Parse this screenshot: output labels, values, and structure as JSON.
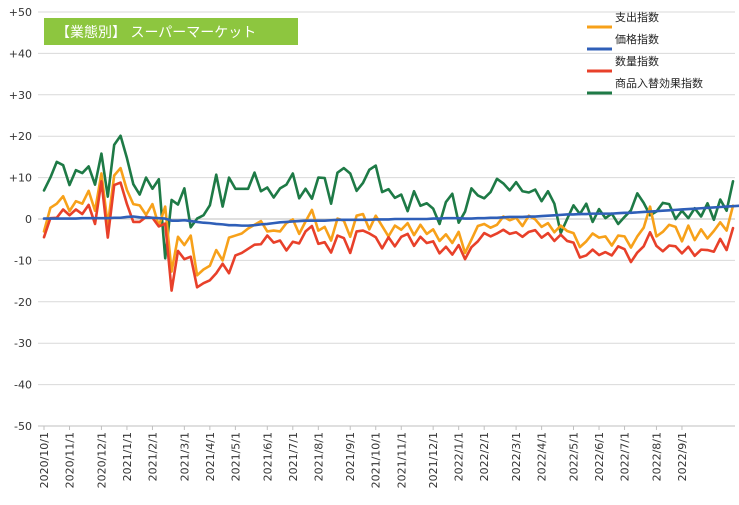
{
  "chart_data": {
    "type": "line",
    "title": "【業態別】 スーパーマーケット",
    "title_bg_color": "#8DC63F",
    "ylim": [
      -50,
      50
    ],
    "y_ticks": [
      "+50",
      "+40",
      "+30",
      "+20",
      "+10",
      "0",
      "-10",
      "-20",
      "-30",
      "-40",
      "-50"
    ],
    "y_tick_values": [
      50,
      40,
      30,
      20,
      10,
      0,
      -10,
      -20,
      -30,
      -40,
      -50
    ],
    "x_tick_labels": [
      "2020/10/1",
      "2020/11/1",
      "2020/12/1",
      "2021/1/1",
      "2021/2/1",
      "2021/3/1",
      "2021/4/1",
      "2021/5/1",
      "2021/6/1",
      "2021/7/1",
      "2021/8/1",
      "2021/9/1",
      "2021/10/1",
      "2021/11/1",
      "2021/12/1",
      "2022/1/1",
      "2022/2/1",
      "2022/3/1",
      "2022/4/1",
      "2022/5/1",
      "2022/6/1",
      "2022/7/1",
      "2022/8/1",
      "2022/9/1"
    ],
    "x_tick_index": [
      0,
      4,
      9,
      13,
      17,
      22,
      26,
      30,
      35,
      39,
      43,
      48,
      52,
      56,
      61,
      65,
      69,
      74,
      78,
      83,
      87,
      91,
      96,
      100
    ],
    "legend_position": "top-right",
    "grid": true,
    "series": [
      {
        "name": "支出指数",
        "color": "#F7A11A",
        "values": [
          -3,
          2.7,
          3.7,
          5.5,
          1.9,
          4.3,
          3.7,
          6.8,
          2,
          11,
          -1.5,
          10.5,
          12.3,
          7,
          3.6,
          3.3,
          1,
          3.6,
          -1.7,
          3,
          -12.7,
          -4.3,
          -6.3,
          -4,
          -13.6,
          -12.2,
          -11.3,
          -7.5,
          -10,
          -4.5,
          -4,
          -3.5,
          -2.3,
          -1.4,
          -0.5,
          -3,
          -2.8,
          -3,
          -1,
          -0.1,
          -3.6,
          -0.6,
          2.2,
          -2.8,
          -1.9,
          -5.2,
          0.1,
          -0.4,
          -4.3,
          0.8,
          1.2,
          -2.5,
          0.8,
          -1.7,
          -4.2,
          -1.6,
          -2.6,
          -1,
          -3.9,
          -1.4,
          -3.6,
          -2.5,
          -5.3,
          -3.7,
          -5.8,
          -3.1,
          -8.2,
          -5,
          -1.7,
          -1.2,
          -2.1,
          -1.4,
          0.6,
          -0.3,
          0.3,
          -1.7,
          0.8,
          -0.1,
          -1.9,
          -1,
          -3.2,
          -1.6,
          -2.9,
          -3.4,
          -6.8,
          -5.4,
          -3.5,
          -4.5,
          -4.2,
          -6.4,
          -4,
          -4.2,
          -6.9,
          -4.2,
          -2.1,
          3,
          -4.2,
          -3.1,
          -1.4,
          -1.9,
          -5.4,
          -1.6,
          -5.1,
          -2.5,
          -4.7,
          -2.9,
          -0.8,
          -2.8,
          3.2
        ]
      },
      {
        "name": "価格指数",
        "color": "#2F5FB8",
        "values": [
          0.1,
          0.1,
          0.1,
          0.1,
          0.1,
          0.1,
          0.2,
          0.2,
          0.2,
          0.2,
          0.2,
          0.3,
          0.3,
          0.5,
          0.6,
          0.4,
          0.3,
          0.3,
          0.2,
          0.1,
          -0.4,
          -0.4,
          -0.3,
          -0.5,
          -0.7,
          -0.9,
          -1,
          -1.2,
          -1.3,
          -1.5,
          -1.5,
          -1.6,
          -1.6,
          -1.5,
          -1.3,
          -1.2,
          -1,
          -0.8,
          -0.7,
          -0.6,
          -0.5,
          -0.4,
          -0.4,
          -0.4,
          -0.4,
          -0.3,
          -0.2,
          -0.2,
          -0.2,
          -0.2,
          -0.2,
          -0.2,
          -0.1,
          -0.1,
          -0.1,
          0,
          0,
          0,
          0,
          0,
          0,
          0.1,
          0.1,
          0.2,
          0.2,
          0.2,
          0.1,
          0.1,
          0.2,
          0.2,
          0.3,
          0.3,
          0.4,
          0.5,
          0.5,
          0.5,
          0.6,
          0.6,
          0.7,
          0.8,
          0.9,
          1,
          1.1,
          1.1,
          1.2,
          1.2,
          1.3,
          1.3,
          1.3,
          1.3,
          1.4,
          1.5,
          1.5,
          1.6,
          1.7,
          1.8,
          1.9,
          2,
          2.1,
          2.2,
          2.3,
          2.4,
          2.5,
          2.6,
          2.7,
          2.8,
          2.9,
          3,
          3.1,
          3.2,
          3.3
        ]
      },
      {
        "name": "数量指数",
        "color": "#E8402A",
        "values": [
          -4.4,
          0.2,
          0.3,
          2.3,
          0.9,
          2.3,
          1.2,
          3.4,
          -1.2,
          9.1,
          -4.5,
          8.2,
          8.8,
          3.6,
          -0.7,
          -0.7,
          0.5,
          0.3,
          -1.8,
          -1.1,
          -17.3,
          -7.7,
          -9.7,
          -9.1,
          -16.5,
          -15.5,
          -14.8,
          -13.1,
          -10.8,
          -13.1,
          -8.8,
          -8.2,
          -7.2,
          -6.2,
          -6.1,
          -4,
          -5.7,
          -5.2,
          -7.6,
          -5.5,
          -5.9,
          -3,
          -1.7,
          -6,
          -5.6,
          -8.1,
          -4,
          -4.6,
          -8.2,
          -3,
          -2.8,
          -3.5,
          -4.4,
          -7.1,
          -4.4,
          -6.6,
          -4.3,
          -3.6,
          -6.5,
          -4.3,
          -5.8,
          -5.4,
          -8.3,
          -6.7,
          -8.6,
          -6.3,
          -9.7,
          -6.8,
          -5.4,
          -3.4,
          -4.2,
          -3.5,
          -2.6,
          -3.6,
          -3.2,
          -4.3,
          -3.1,
          -2.7,
          -4.5,
          -3.4,
          -5.3,
          -3.8,
          -5.3,
          -5.7,
          -9.3,
          -8.8,
          -7.4,
          -8.7,
          -8,
          -8.8,
          -6.6,
          -7.3,
          -10.4,
          -8.1,
          -6.6,
          -3.2,
          -6.5,
          -7.8,
          -6.4,
          -6.6,
          -8.3,
          -6.7,
          -8.9,
          -7.4,
          -7.5,
          -7.9,
          -4.8,
          -7.5,
          -2.2
        ]
      },
      {
        "name": "商品入替効果指数",
        "color": "#1E7A46",
        "values": [
          6.9,
          10,
          13.8,
          13,
          8.2,
          11.8,
          11.1,
          12.7,
          8.3,
          15.8,
          5.4,
          17.9,
          20.1,
          14.7,
          8.4,
          5.9,
          10,
          7.3,
          9.6,
          -9.5,
          4.6,
          3.5,
          7.4,
          -2,
          0.1,
          0.9,
          3.3,
          10.7,
          3,
          10,
          7.3,
          7.3,
          7.3,
          11.2,
          6.7,
          7.6,
          5.2,
          7.4,
          8.3,
          11,
          5,
          7.3,
          4.9,
          10,
          9.9,
          3.7,
          11.2,
          12.3,
          11,
          6.8,
          8.7,
          11.9,
          12.9,
          6.5,
          7.2,
          5.1,
          5.9,
          1.9,
          6.7,
          3.2,
          3.8,
          2.5,
          -1.2,
          4.1,
          6.1,
          -0.9,
          1.8,
          7.4,
          5.7,
          5,
          6.5,
          9.7,
          8.6,
          6.9,
          8.9,
          6.7,
          6.4,
          7.1,
          4.3,
          6.7,
          3.7,
          -3.4,
          0,
          3.3,
          1.2,
          3.7,
          -0.7,
          2.4,
          0.2,
          1.3,
          -1.2,
          0.5,
          2.1,
          6.2,
          3.9,
          0.9,
          1.8,
          3.9,
          3.6,
          0,
          2,
          0.2,
          2.6,
          0.6,
          3.8,
          -0.2,
          4.7,
          2,
          9.1
        ]
      }
    ]
  }
}
